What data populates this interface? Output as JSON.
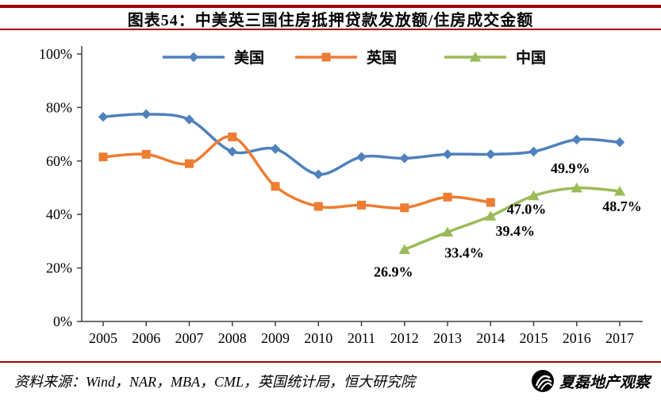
{
  "header": {
    "title": "图表54：中美英三国住房抵押贷款发放额/住房成交金额"
  },
  "footer": {
    "source": "资料来源：Wind，NAR，MBA，CML，英国统计局，恒大研究院",
    "logo_text": "夏磊地产观察"
  },
  "colors": {
    "rule": "#a00000",
    "us_blue": "#4F81BD",
    "uk_orange": "#ED7D31",
    "cn_green": "#9BBB59",
    "axis": "#404040",
    "text": "#000000"
  },
  "chart_data": {
    "type": "line",
    "title": "图表54：中美英三国住房抵押贷款发放额/住房成交金额",
    "xlabel": "",
    "ylabel": "",
    "x": [
      "2005",
      "2006",
      "2007",
      "2008",
      "2009",
      "2010",
      "2011",
      "2012",
      "2013",
      "2014",
      "2015",
      "2016",
      "2017"
    ],
    "ylim": [
      0,
      100
    ],
    "yticks": [
      0,
      20,
      40,
      60,
      80,
      100
    ],
    "ytick_labels": [
      "0%",
      "20%",
      "40%",
      "60%",
      "80%",
      "100%"
    ],
    "grid": false,
    "legend_position": "top",
    "series": [
      {
        "name": "美国",
        "color": "#4F81BD",
        "marker": "diamond",
        "values": [
          76.5,
          77.5,
          75.5,
          63.5,
          64.5,
          55,
          61.5,
          61,
          62.5,
          62.5,
          63.5,
          68,
          67
        ]
      },
      {
        "name": "英国",
        "color": "#ED7D31",
        "marker": "square",
        "values": [
          61.5,
          62.5,
          59,
          69,
          50.5,
          43,
          43.5,
          42.5,
          46.5,
          44.5,
          null,
          null,
          null
        ]
      },
      {
        "name": "中国",
        "color": "#9BBB59",
        "marker": "triangle",
        "values": [
          null,
          null,
          null,
          null,
          null,
          null,
          null,
          26.9,
          33.4,
          39.4,
          47.0,
          49.9,
          48.7
        ],
        "point_labels": [
          {
            "x": "2012",
            "text": "26.9%",
            "dx": -14,
            "dy": 34
          },
          {
            "x": "2013",
            "text": "33.4%",
            "dx": 21,
            "dy": 32
          },
          {
            "x": "2014",
            "text": "39.4%",
            "dx": 31,
            "dy": 25
          },
          {
            "x": "2015",
            "text": "47.0%",
            "dx": -9,
            "dy": 23
          },
          {
            "x": "2016",
            "text": "49.9%",
            "dx": -8,
            "dy": -19
          },
          {
            "x": "2017",
            "text": "48.7%",
            "dx": 3,
            "dy": 25
          }
        ]
      }
    ]
  }
}
